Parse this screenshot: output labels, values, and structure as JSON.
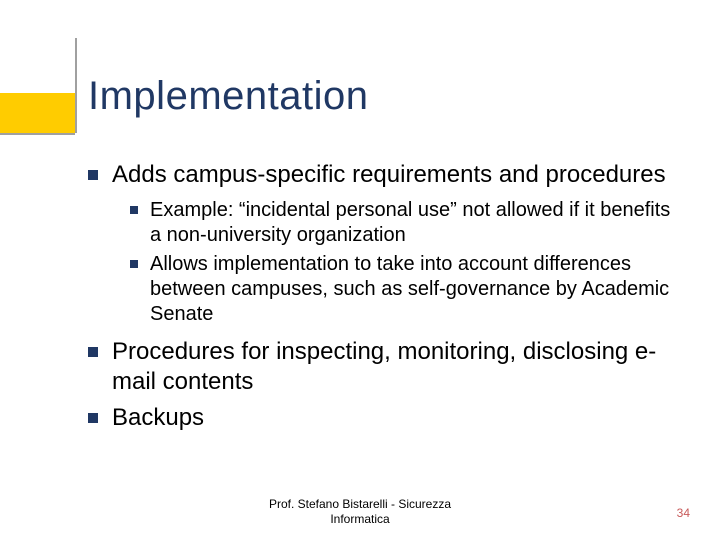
{
  "colors": {
    "title": "#203864",
    "bodyText": "#000000",
    "bullet": "#203864",
    "accentYellow": "#ffcc00",
    "accentLine": "#a0a0a0",
    "footerText": "#000000",
    "pageNum": "#c85a5a",
    "background": "#ffffff"
  },
  "typography": {
    "titleFontSize": 40,
    "level1FontSize": 24,
    "level2FontSize": 20,
    "footerFontSize": 12,
    "fontFamily": "Verdana, Tahoma, Arial, sans-serif"
  },
  "title": "Implementation",
  "bullets": [
    {
      "text": "Adds campus-specific requirements and procedures",
      "children": [
        {
          "text": "Example: “incidental personal use” not allowed if it benefits a non-university organization"
        },
        {
          "text": "Allows implementation to take into account differences between campuses, such as self-governance by Academic Senate"
        }
      ]
    },
    {
      "text": "Procedures for inspecting, monitoring, disclosing e-mail contents",
      "children": []
    },
    {
      "text": "Backups",
      "children": []
    }
  ],
  "footer": {
    "line1": "Prof. Stefano Bistarelli - Sicurezza",
    "line2": "Informatica"
  },
  "pageNumber": "34"
}
